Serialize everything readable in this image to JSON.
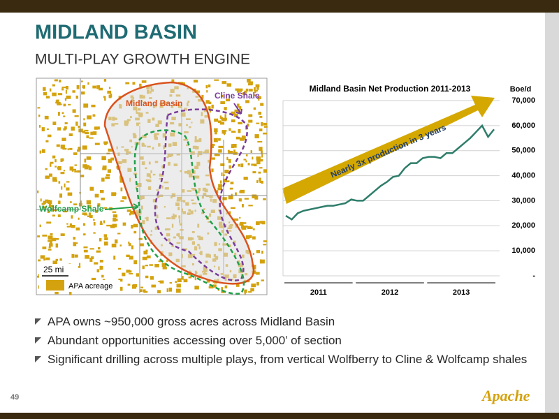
{
  "slide": {
    "title": "MIDLAND BASIN",
    "subtitle": "MULTI-PLAY GROWTH ENGINE",
    "bullets": [
      "APA owns ~950,000 gross acres across Midland Basin",
      "Abundant opportunities accessing over 5,000’ of section",
      "Significant drilling across multiple plays, from vertical Wolfberry to Cline & Wolfcamp shales"
    ],
    "page_number": "49",
    "logo": "Apache"
  },
  "map": {
    "labels": [
      "Midland Basin",
      "Cline Shale",
      "Wolfcamp Shale"
    ],
    "scale": "25 mi",
    "legend": "APA acreage"
  },
  "chart_data": {
    "type": "line",
    "title": "Midland Basin Net Production 2011-2013",
    "y_axis_label": "Boe/d",
    "categories": [
      null,
      null,
      null,
      null,
      null,
      null,
      null,
      null,
      null,
      null,
      null,
      null,
      null,
      null,
      null,
      null,
      null,
      null,
      null,
      null,
      null,
      null,
      null,
      null,
      null,
      null,
      null,
      null,
      null,
      null,
      null,
      null,
      null,
      null,
      null,
      null
    ],
    "x_groups": [
      "2011",
      "2012",
      "2013"
    ],
    "values": [
      24000,
      22500,
      25000,
      26000,
      26500,
      27000,
      27500,
      28000,
      28000,
      28500,
      29000,
      30500,
      30000,
      30000,
      32000,
      34000,
      36000,
      37500,
      39500,
      40000,
      43000,
      45000,
      45000,
      47000,
      47500,
      47500,
      47000,
      49000,
      49000,
      51000,
      53000,
      55000,
      57500,
      60000,
      55500,
      58500
    ],
    "color": "#2e7d6b",
    "ylim": [
      0,
      70000
    ],
    "yticks": [
      {
        "value": 0,
        "label": "-"
      },
      {
        "value": 10000,
        "label": "10,000"
      },
      {
        "value": 20000,
        "label": "20,000"
      },
      {
        "value": 30000,
        "label": "30,000"
      },
      {
        "value": 40000,
        "label": "40,000"
      },
      {
        "value": 50000,
        "label": "50,000"
      },
      {
        "value": 60000,
        "label": "60,000"
      },
      {
        "value": 70000,
        "label": "70,000"
      }
    ],
    "grid": true,
    "annotation": "Nearly 3x production in 3 years"
  }
}
